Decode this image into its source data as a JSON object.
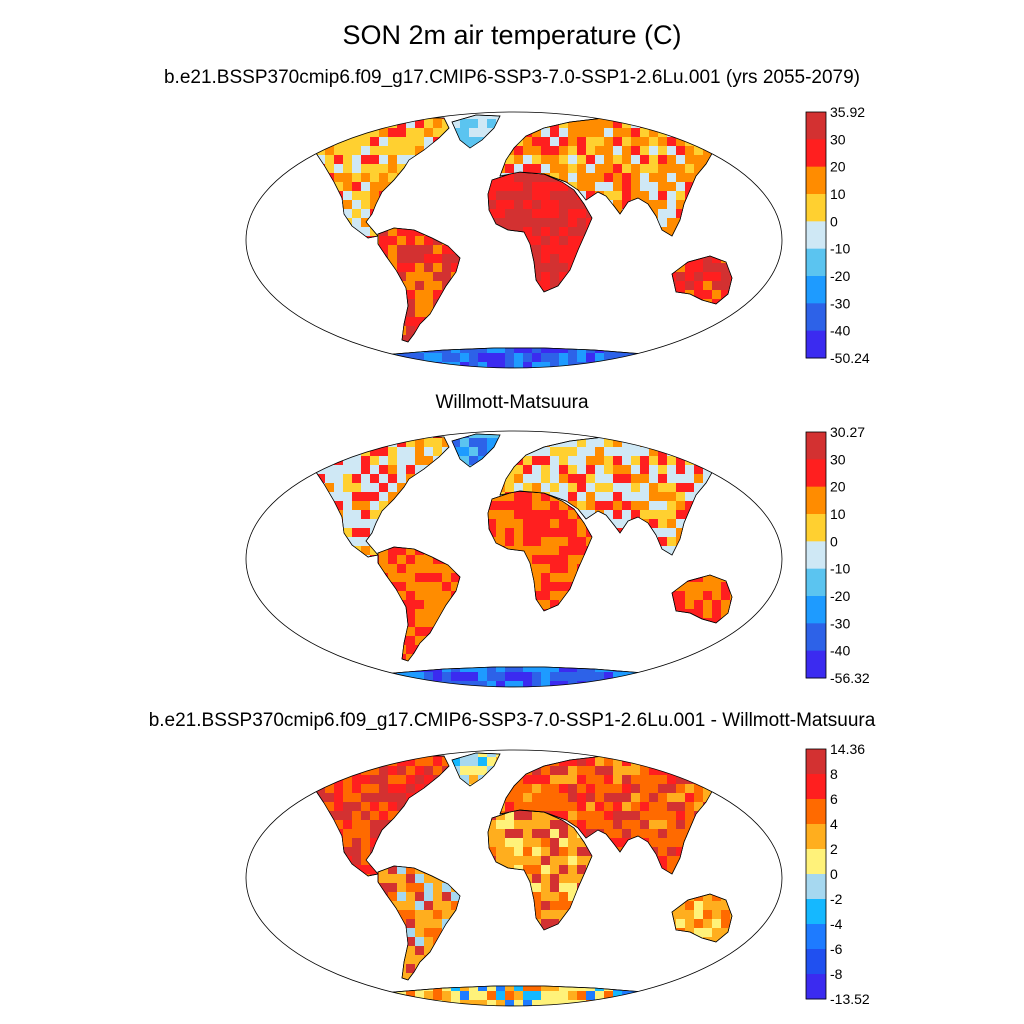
{
  "title": "SON 2m air temperature (C)",
  "panels": [
    {
      "title": "b.e21.BSSP370cmip6.f09_g17.CMIP6-SSP3-7.0-SSP1-2.6Lu.001 (yrs 2055-2079)",
      "colorbar": {
        "labels": [
          "35.92",
          "30",
          "20",
          "10",
          "0",
          "-10",
          "-20",
          "-30",
          "-40",
          "-50.24"
        ],
        "colors": [
          "#d33131",
          "#ff1f1f",
          "#ff8c00",
          "#ffd030",
          "#cfe8f5",
          "#5bc4f0",
          "#1e9bff",
          "#2d62e8",
          "#3b2bf0"
        ]
      },
      "regions": [
        {
          "name": "north-america",
          "colors": [
            "#ffd030",
            "#ff8c00",
            "#ff1f1f",
            "#cfe8f5"
          ]
        },
        {
          "name": "greenland",
          "colors": [
            "#cfe8f5",
            "#5bc4f0"
          ]
        },
        {
          "name": "south-america",
          "colors": [
            "#d33131",
            "#ff1f1f",
            "#ff8c00"
          ]
        },
        {
          "name": "africa",
          "colors": [
            "#d33131",
            "#ff1f1f"
          ]
        },
        {
          "name": "eurasia",
          "colors": [
            "#ff8c00",
            "#ffd030",
            "#cfe8f5",
            "#ff1f1f"
          ]
        },
        {
          "name": "australia",
          "colors": [
            "#ff1f1f",
            "#d33131",
            "#ff8c00"
          ]
        },
        {
          "name": "antarctica",
          "colors": [
            "#2d62e8",
            "#3b2bf0",
            "#1e9bff"
          ]
        }
      ]
    },
    {
      "title": "Willmott-Matsuura",
      "colorbar": {
        "labels": [
          "30.27",
          "30",
          "20",
          "10",
          "0",
          "-10",
          "-20",
          "-30",
          "-40",
          "-56.32"
        ],
        "colors": [
          "#d33131",
          "#ff1f1f",
          "#ff8c00",
          "#ffd030",
          "#cfe8f5",
          "#5bc4f0",
          "#1e9bff",
          "#2d62e8",
          "#3b2bf0"
        ]
      },
      "regions": [
        {
          "name": "north-america",
          "colors": [
            "#cfe8f5",
            "#ffd030",
            "#ff8c00",
            "#ff1f1f"
          ]
        },
        {
          "name": "greenland",
          "colors": [
            "#1e9bff",
            "#2d62e8",
            "#5bc4f0"
          ]
        },
        {
          "name": "south-america",
          "colors": [
            "#ff1f1f",
            "#ff8c00"
          ]
        },
        {
          "name": "africa",
          "colors": [
            "#ff1f1f",
            "#ff8c00"
          ]
        },
        {
          "name": "eurasia",
          "colors": [
            "#cfe8f5",
            "#ffd030",
            "#ff8c00",
            "#ff1f1f"
          ]
        },
        {
          "name": "australia",
          "colors": [
            "#ff1f1f",
            "#ff8c00"
          ]
        },
        {
          "name": "antarctica",
          "colors": [
            "#2d62e8",
            "#3b2bf0",
            "#1e9bff"
          ]
        }
      ]
    },
    {
      "title": "b.e21.BSSP370cmip6.f09_g17.CMIP6-SSP3-7.0-SSP1-2.6Lu.001 - Willmott-Matsuura",
      "colorbar": {
        "labels": [
          "14.36",
          "8",
          "6",
          "4",
          "2",
          "0",
          "-2",
          "-4",
          "-6",
          "-8",
          "-13.52"
        ],
        "colors": [
          "#d33131",
          "#ff1f1f",
          "#ff6a00",
          "#ffae1e",
          "#fff27a",
          "#a6d8f0",
          "#15b8ff",
          "#1e7bff",
          "#2050f0",
          "#3b2bf0"
        ]
      },
      "regions": [
        {
          "name": "north-america",
          "colors": [
            "#d33131",
            "#ff1f1f",
            "#ff6a00"
          ]
        },
        {
          "name": "greenland",
          "colors": [
            "#fff27a",
            "#a6d8f0",
            "#15b8ff",
            "#ffae1e"
          ]
        },
        {
          "name": "south-america",
          "colors": [
            "#ffae1e",
            "#ff6a00",
            "#d33131",
            "#a6d8f0"
          ]
        },
        {
          "name": "africa",
          "colors": [
            "#ffae1e",
            "#fff27a",
            "#ff6a00",
            "#d33131"
          ]
        },
        {
          "name": "eurasia",
          "colors": [
            "#ff6a00",
            "#ff1f1f",
            "#ffae1e",
            "#d33131"
          ]
        },
        {
          "name": "australia",
          "colors": [
            "#ffae1e",
            "#fff27a",
            "#ff6a00"
          ]
        },
        {
          "name": "antarctica",
          "colors": [
            "#fff27a",
            "#ffae1e",
            "#15b8ff",
            "#ff6a00",
            "#1e7bff"
          ]
        }
      ]
    }
  ]
}
